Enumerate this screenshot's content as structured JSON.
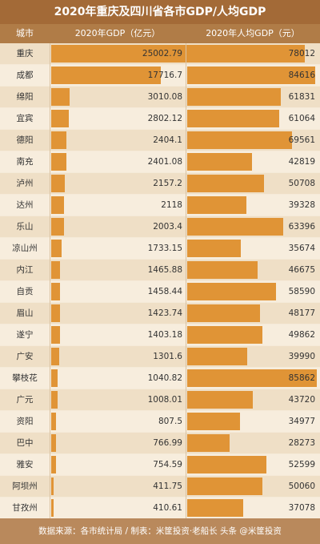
{
  "title": "2020年重庆及四川省各市GDP/人均GDP",
  "header": {
    "city": "城市",
    "gdp": "2020年GDP（亿元）",
    "per_capita": "2020年人均GDP（元）"
  },
  "footer": "数据来源：各市统计局 / 制表：米筐投资·老船长 头条 @米筐投资",
  "colors": {
    "bar": "#e09436",
    "header": "#b07c47",
    "title": "#a36a37"
  },
  "chart_data": {
    "type": "bar",
    "categories": [
      "重庆",
      "成都",
      "绵阳",
      "宜宾",
      "德阳",
      "南充",
      "泸州",
      "达州",
      "乐山",
      "凉山州",
      "内江",
      "自贡",
      "眉山",
      "遂宁",
      "广安",
      "攀枝花",
      "广元",
      "资阳",
      "巴中",
      "雅安",
      "阿坝州",
      "甘孜州"
    ],
    "series": [
      {
        "name": "2020年GDP（亿元）",
        "values": [
          25002.79,
          17716.7,
          3010.08,
          2802.12,
          2404.1,
          2401.08,
          2157.2,
          2118,
          2003.4,
          1733.15,
          1465.88,
          1458.44,
          1423.74,
          1403.18,
          1301.6,
          1040.82,
          1008.01,
          807.5,
          766.99,
          754.59,
          411.75,
          410.61
        ],
        "labels": [
          "25002.79",
          "17716.7",
          "3010.08",
          "2802.12",
          "2404.1",
          "2401.08",
          "2157.2",
          "2118",
          "2003.4",
          "1733.15",
          "1465.88",
          "1458.44",
          "1423.74",
          "1403.18",
          "1301.6",
          "1040.82",
          "1008.01",
          "807.5",
          "766.99",
          "754.59",
          "411.75",
          "410.61"
        ]
      },
      {
        "name": "2020年人均GDP（元）",
        "values": [
          78012,
          84616,
          61831,
          61064,
          69561,
          42819,
          50708,
          39328,
          63396,
          35674,
          46675,
          58590,
          48177,
          49862,
          39990,
          85862,
          43720,
          34977,
          28273,
          52599,
          50060,
          37078
        ],
        "labels": [
          "78012",
          "84616",
          "61831",
          "61064",
          "69561",
          "42819",
          "50708",
          "39328",
          "63396",
          "35674",
          "46675",
          "58590",
          "48177",
          "49862",
          "39990",
          "85862",
          "43720",
          "34977",
          "28273",
          "52599",
          "50060",
          "37078"
        ]
      }
    ],
    "xlim_gdp": [
      0,
      25002.79
    ],
    "xlim_per_capita": [
      0,
      85862
    ]
  }
}
